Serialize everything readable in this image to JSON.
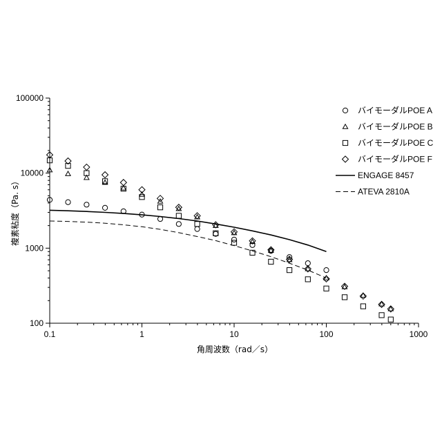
{
  "chart_data": {
    "type": "scatter",
    "xscale": "log",
    "yscale": "log",
    "xlim": [
      0.1,
      1000
    ],
    "ylim": [
      100,
      100000
    ],
    "xticks": [
      "0.1",
      "1",
      "10",
      "100",
      "1000"
    ],
    "yticks": [
      "100",
      "1000",
      "10000",
      "100000"
    ],
    "xlabel": "角周波数（rad／s）",
    "ylabel": "複素粘度（Pa. s）",
    "legend_position": "top-right",
    "series": [
      {
        "name": "バイモーダルPOE A",
        "marker": "circle",
        "x": [
          0.1,
          0.158,
          0.251,
          0.398,
          0.631,
          1.0,
          1.58,
          2.51,
          3.98,
          6.31,
          10,
          15.8,
          25.1,
          39.8,
          63.1,
          100
        ],
        "y": [
          4400,
          4100,
          3800,
          3450,
          3100,
          2800,
          2450,
          2100,
          1800,
          1550,
          1300,
          1100,
          920,
          760,
          630,
          510
        ]
      },
      {
        "name": "バイモーダルPOE B",
        "marker": "triangle",
        "x": [
          0.1,
          0.158,
          0.251,
          0.398,
          0.631,
          1.0,
          1.58,
          2.51,
          3.98,
          6.31,
          10,
          15.8,
          25.1,
          39.8,
          63.1,
          100,
          158,
          251,
          398,
          500
        ],
        "y": [
          11000,
          9800,
          8700,
          7500,
          6300,
          5200,
          4200,
          3350,
          2600,
          2000,
          1600,
          1220,
          930,
          700,
          530,
          400,
          305,
          235,
          180,
          155
        ]
      },
      {
        "name": "バイモーダルPOE C",
        "marker": "square",
        "x": [
          0.1,
          0.158,
          0.251,
          0.398,
          0.631,
          1.0,
          1.58,
          2.51,
          3.98,
          6.31,
          10,
          15.8,
          25.1,
          39.8,
          63.1,
          100,
          158,
          251,
          398,
          500
        ],
        "y": [
          14800,
          12500,
          10000,
          7800,
          6200,
          4800,
          3500,
          2700,
          2100,
          1580,
          1180,
          870,
          660,
          510,
          385,
          290,
          222,
          168,
          128,
          112
        ]
      },
      {
        "name": "バイモーダルPOE F",
        "marker": "diamond",
        "x": [
          0.1,
          0.158,
          0.251,
          0.398,
          0.631,
          1.0,
          1.58,
          2.51,
          3.98,
          6.31,
          10,
          15.8,
          25.1,
          39.8,
          63.1,
          100,
          158,
          251,
          398,
          500
        ],
        "y": [
          17500,
          14500,
          12000,
          9500,
          7500,
          6000,
          4600,
          3500,
          2700,
          2050,
          1650,
          1250,
          950,
          710,
          530,
          390,
          310,
          230,
          178,
          155
        ]
      },
      {
        "name": "ENGAGE 8457",
        "marker": "line-solid",
        "x": [
          0.1,
          0.158,
          0.251,
          0.398,
          0.631,
          1.0,
          1.58,
          2.51,
          3.98,
          6.31,
          10,
          15.8,
          25.1,
          39.8,
          63.1,
          100
        ],
        "y": [
          3200,
          3150,
          3080,
          3000,
          2900,
          2780,
          2640,
          2480,
          2300,
          2100,
          1900,
          1700,
          1500,
          1300,
          1100,
          900
        ]
      },
      {
        "name": "ATEVA 2810A",
        "marker": "line-dashed",
        "x": [
          0.1,
          0.158,
          0.251,
          0.398,
          0.631,
          1.0,
          1.58,
          2.51,
          3.98,
          6.31,
          10,
          15.8,
          25.1,
          39.8,
          63.1,
          100
        ],
        "y": [
          2300,
          2270,
          2220,
          2150,
          2050,
          1930,
          1780,
          1610,
          1430,
          1260,
          1080,
          920,
          770,
          630,
          510,
          400
        ]
      }
    ]
  }
}
